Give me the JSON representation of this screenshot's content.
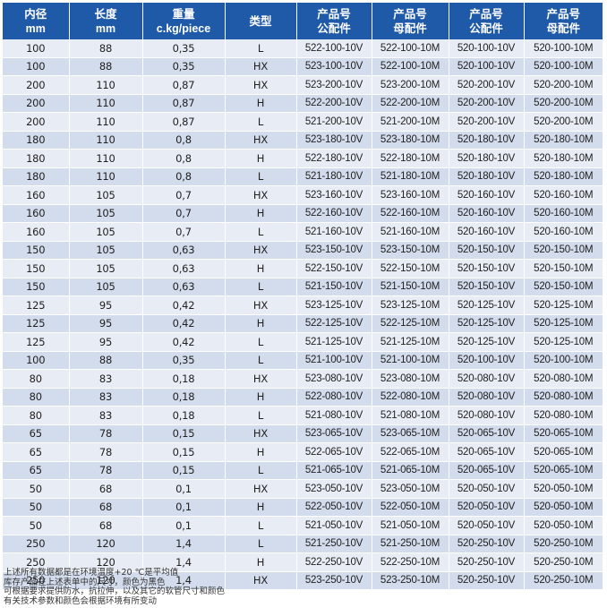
{
  "headers": [
    {
      "line1": "内径",
      "line2": "mm"
    },
    {
      "line1": "长度",
      "line2": "mm"
    },
    {
      "line1": "重量",
      "line2": "c.kg/piece"
    },
    {
      "line1": "类型",
      "line2": ""
    },
    {
      "line1": "产品号",
      "line2": "公配件"
    },
    {
      "line1": "产品号",
      "line2": "母配件"
    },
    {
      "line1": "产品号",
      "line2": "公配件"
    },
    {
      "line1": "产品号",
      "line2": "母配件"
    }
  ],
  "rows": [
    [
      "100",
      "88",
      "0,35",
      "L",
      "522-100-10V",
      "522-100-10M",
      "520-100-10V",
      "520-100-10M"
    ],
    [
      "100",
      "88",
      "0,35",
      "HX",
      "523-100-10V",
      "522-100-10M",
      "520-100-10V",
      "520-100-10M"
    ],
    [
      "200",
      "110",
      "0,87",
      "HX",
      "523-200-10V",
      "523-200-10M",
      "520-200-10V",
      "520-200-10M"
    ],
    [
      "200",
      "110",
      "0,87",
      "H",
      "522-200-10V",
      "522-200-10M",
      "520-200-10V",
      "520-200-10M"
    ],
    [
      "200",
      "110",
      "0,87",
      "L",
      "521-200-10V",
      "521-200-10M",
      "520-200-10V",
      "520-200-10M"
    ],
    [
      "180",
      "110",
      "0,8",
      "HX",
      "523-180-10V",
      "523-180-10M",
      "520-180-10V",
      "520-180-10M"
    ],
    [
      "180",
      "110",
      "0,8",
      "H",
      "522-180-10V",
      "522-180-10M",
      "520-180-10V",
      "520-180-10M"
    ],
    [
      "180",
      "110",
      "0,8",
      "L",
      "521-180-10V",
      "521-180-10M",
      "520-180-10V",
      "520-180-10M"
    ],
    [
      "160",
      "105",
      "0,7",
      "HX",
      "523-160-10V",
      "523-160-10M",
      "520-160-10V",
      "520-160-10M"
    ],
    [
      "160",
      "105",
      "0,7",
      "H",
      "522-160-10V",
      "522-160-10M",
      "520-160-10V",
      "520-160-10M"
    ],
    [
      "160",
      "105",
      "0,7",
      "L",
      "521-160-10V",
      "521-160-10M",
      "520-160-10V",
      "520-160-10M"
    ],
    [
      "150",
      "105",
      "0,63",
      "HX",
      "523-150-10V",
      "523-150-10M",
      "520-150-10V",
      "520-150-10M"
    ],
    [
      "150",
      "105",
      "0,63",
      "H",
      "522-150-10V",
      "522-150-10M",
      "520-150-10V",
      "520-150-10M"
    ],
    [
      "150",
      "105",
      "0,63",
      "L",
      "521-150-10V",
      "521-150-10M",
      "520-150-10V",
      "520-150-10M"
    ],
    [
      "125",
      "95",
      "0,42",
      "HX",
      "523-125-10V",
      "523-125-10M",
      "520-125-10V",
      "520-125-10M"
    ],
    [
      "125",
      "95",
      "0,42",
      "H",
      "522-125-10V",
      "522-125-10M",
      "520-125-10V",
      "520-125-10M"
    ],
    [
      "125",
      "95",
      "0,42",
      "L",
      "521-125-10V",
      "521-125-10M",
      "520-125-10V",
      "520-125-10M"
    ],
    [
      "100",
      "88",
      "0,35",
      "L",
      "521-100-10V",
      "521-100-10M",
      "520-100-10V",
      "520-100-10M"
    ],
    [
      "80",
      "83",
      "0,18",
      "HX",
      "523-080-10V",
      "523-080-10M",
      "520-080-10V",
      "520-080-10M"
    ],
    [
      "80",
      "83",
      "0,18",
      "H",
      "522-080-10V",
      "522-080-10M",
      "520-080-10V",
      "520-080-10M"
    ],
    [
      "80",
      "83",
      "0,18",
      "L",
      "521-080-10V",
      "521-080-10M",
      "520-080-10V",
      "520-080-10M"
    ],
    [
      "65",
      "78",
      "0,15",
      "HX",
      "523-065-10V",
      "523-065-10M",
      "520-065-10V",
      "520-065-10M"
    ],
    [
      "65",
      "78",
      "0,15",
      "H",
      "522-065-10V",
      "522-065-10M",
      "520-065-10V",
      "520-065-10M"
    ],
    [
      "65",
      "78",
      "0,15",
      "L",
      "521-065-10V",
      "521-065-10M",
      "520-065-10V",
      "520-065-10M"
    ],
    [
      "50",
      "68",
      "0,1",
      "HX",
      "523-050-10V",
      "523-050-10M",
      "520-050-10V",
      "520-050-10M"
    ],
    [
      "50",
      "68",
      "0,1",
      "H",
      "522-050-10V",
      "522-050-10M",
      "520-050-10V",
      "520-050-10M"
    ],
    [
      "50",
      "68",
      "0,1",
      "L",
      "521-050-10V",
      "521-050-10M",
      "520-050-10V",
      "520-050-10M"
    ],
    [
      "250",
      "120",
      "1,4",
      "L",
      "521-250-10V",
      "521-250-10M",
      "520-250-10V",
      "520-250-10M"
    ],
    [
      "250",
      "120",
      "1,4",
      "H",
      "522-250-10V",
      "522-250-10M",
      "520-250-10V",
      "520-250-10M"
    ],
    [
      "250",
      "120",
      "1,4",
      "HX",
      "523-250-10V",
      "523-250-10M",
      "520-250-10V",
      "520-250-10M"
    ]
  ],
  "notes": [
    "上述所有数据都是在环境温度+20 ℃是平均值",
    "库存产品在上述表单中的尺寸，颜色为黑色",
    "可根据要求提供防水，抗拉伸，以及其它的软管尺寸和颜色",
    "有关技术参数和颜色会根据环境有所变动"
  ],
  "colors": {
    "header_bg": "#1f5aa8",
    "row_light": "#e8ecf5",
    "row_dark": "#d2dcec"
  }
}
